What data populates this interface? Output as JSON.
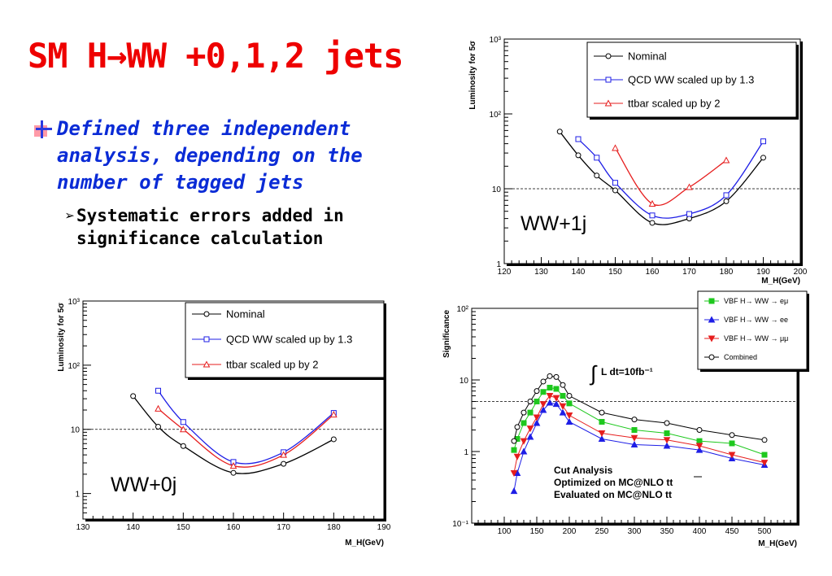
{
  "slide": {
    "title": "SM H→WW +0,1,2 jets",
    "bullet1": "Defined three independent analysis, depending on the number of tagged jets",
    "bullet2": "Systematic errors added in significance calculation"
  },
  "chart_data": [
    {
      "type": "line",
      "annotation": "WW+1j",
      "xlabel": "M_H(GeV)",
      "ylabel": "Luminosity for 5σ",
      "yscale": "log",
      "xlim": [
        120,
        200
      ],
      "ylim": [
        1,
        1000
      ],
      "xticks": [
        120,
        130,
        140,
        150,
        160,
        170,
        180,
        190,
        200
      ],
      "ytick_labels": [
        "1",
        "10",
        "10²",
        "10³"
      ],
      "reference_line": 10,
      "legend": "top-right",
      "series": [
        {
          "name": "Nominal",
          "color": "#000000",
          "marker": "circle",
          "x": [
            135,
            140,
            145,
            150,
            160,
            170,
            180,
            190
          ],
          "y": [
            58,
            28,
            15,
            9.5,
            3.5,
            4.0,
            6.8,
            26
          ]
        },
        {
          "name": "QCD WW scaled up by 1.3",
          "color": "#1e1ee6",
          "marker": "square",
          "x": [
            140,
            145,
            150,
            160,
            170,
            180,
            190
          ],
          "y": [
            46,
            26,
            12,
            4.4,
            4.6,
            8.2,
            43
          ]
        },
        {
          "name": "ttbar scaled up by 2",
          "color": "#e61e1e",
          "marker": "triangle",
          "x": [
            150,
            160,
            170,
            180
          ],
          "y": [
            35,
            6.3,
            10.5,
            24
          ]
        }
      ]
    },
    {
      "type": "line",
      "annotation": "WW+0j",
      "xlabel": "M_H(GeV)",
      "ylabel": "Luminosity for 5σ",
      "yscale": "log",
      "xlim": [
        130,
        190
      ],
      "ylim": [
        0.4,
        1000
      ],
      "xticks": [
        130,
        140,
        150,
        160,
        170,
        180,
        190
      ],
      "ytick_labels": [
        "1",
        "10",
        "10²",
        "10³"
      ],
      "reference_line": 10,
      "legend": "top-right",
      "series": [
        {
          "name": "Nominal",
          "color": "#000000",
          "marker": "circle",
          "x": [
            140,
            145,
            150,
            160,
            170,
            180
          ],
          "y": [
            33,
            11,
            5.5,
            2.1,
            2.9,
            7
          ]
        },
        {
          "name": "QCD WW scaled up by 1.3",
          "color": "#1e1ee6",
          "marker": "square",
          "x": [
            145,
            150,
            160,
            170,
            180
          ],
          "y": [
            40,
            13,
            3.1,
            4.4,
            18
          ]
        },
        {
          "name": "ttbar scaled up by 2",
          "color": "#e61e1e",
          "marker": "triangle",
          "x": [
            145,
            150,
            160,
            170,
            180
          ],
          "y": [
            21,
            10,
            2.7,
            4.0,
            17
          ]
        }
      ]
    },
    {
      "type": "line",
      "xlabel": "M_H(GeV)",
      "ylabel": "Significance",
      "yscale": "log",
      "xlim": [
        50,
        550
      ],
      "ylim": [
        0.1,
        100
      ],
      "xticks": [
        100,
        150,
        200,
        250,
        300,
        350,
        400,
        450,
        500
      ],
      "ytick_labels": [
        "10⁻¹",
        "1",
        "10",
        "10²"
      ],
      "reference_line": 5,
      "annotation": "L dt=10fb⁻¹",
      "notes": [
        "Cut Analysis",
        "Optimized on MC@NLO tt",
        "Evaluated on MC@NLO tt"
      ],
      "legend": "top-right",
      "series": [
        {
          "name": "VBF H→ WW → eμ",
          "color": "#1ec81e",
          "marker": "square",
          "x": [
            115,
            120,
            130,
            140,
            150,
            160,
            170,
            180,
            190,
            200,
            250,
            300,
            350,
            400,
            450,
            500
          ],
          "y": [
            1.05,
            1.5,
            2.5,
            3.5,
            5.0,
            6.8,
            7.8,
            7.5,
            6.0,
            4.7,
            2.6,
            2.0,
            1.8,
            1.4,
            1.3,
            0.9
          ]
        },
        {
          "name": "VBF H→ WW → ee",
          "color": "#1e1ee6",
          "marker": "triangle",
          "x": [
            115,
            120,
            130,
            140,
            150,
            160,
            170,
            180,
            190,
            200,
            250,
            300,
            350,
            400,
            450,
            500
          ],
          "y": [
            0.28,
            0.5,
            1.0,
            1.6,
            2.5,
            3.8,
            4.8,
            4.6,
            3.5,
            2.6,
            1.5,
            1.25,
            1.2,
            1.05,
            0.8,
            0.65
          ]
        },
        {
          "name": "VBF H→ WW → μμ",
          "color": "#e61e1e",
          "marker": "triangle-down",
          "x": [
            115,
            120,
            130,
            140,
            150,
            160,
            170,
            180,
            190,
            200,
            250,
            300,
            350,
            400,
            450,
            500
          ],
          "y": [
            0.5,
            0.85,
            1.4,
            2.1,
            3.0,
            4.6,
            6.0,
            5.6,
            4.3,
            3.2,
            1.8,
            1.55,
            1.45,
            1.2,
            0.9,
            0.7
          ]
        },
        {
          "name": "Combined",
          "color": "#000000",
          "marker": "circle",
          "x": [
            115,
            120,
            130,
            140,
            150,
            160,
            170,
            180,
            190,
            200,
            250,
            300,
            350,
            400,
            450,
            500
          ],
          "y": [
            1.4,
            2.2,
            3.5,
            5.0,
            7.0,
            9.5,
            11.3,
            11.0,
            8.5,
            6.0,
            3.5,
            2.8,
            2.5,
            2.0,
            1.7,
            1.45
          ]
        }
      ]
    }
  ]
}
